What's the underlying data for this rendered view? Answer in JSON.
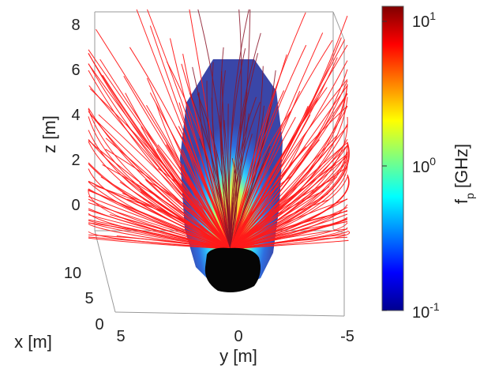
{
  "chart_data": {
    "type": "scatter",
    "title": "",
    "description_type": "3d-surface-with-field-lines",
    "axes": {
      "x": {
        "label": "x [m]",
        "range": [
          0,
          12
        ],
        "ticks": [
          "0",
          "5",
          "10"
        ]
      },
      "y": {
        "label": "y [m]",
        "range": [
          5,
          -5
        ],
        "ticks": [
          "5",
          "0",
          "-5"
        ]
      },
      "z": {
        "label": "z [m]",
        "range": [
          -1.5,
          8.5
        ],
        "ticks": [
          "0",
          "2",
          "4",
          "6",
          "8"
        ]
      }
    },
    "colorbar": {
      "label_main": "f",
      "label_sub": "p",
      "label_unit": " [GHz]",
      "scale": "log",
      "range": [
        0.1,
        10
      ],
      "ticks": [
        {
          "base": "10",
          "exp": "1"
        },
        {
          "base": "10",
          "exp": "0"
        },
        {
          "base": "10",
          "exp": "-1"
        }
      ],
      "colormap": "jet"
    },
    "series": [
      {
        "kind": "surface",
        "note": "",
        "color": "#3a46a8"
      },
      {
        "kind": "field-lines",
        "note": "",
        "color": "#ff1a1a"
      },
      {
        "kind": "body",
        "note": "",
        "color": "#000000"
      }
    ],
    "grid": false,
    "box": true
  }
}
